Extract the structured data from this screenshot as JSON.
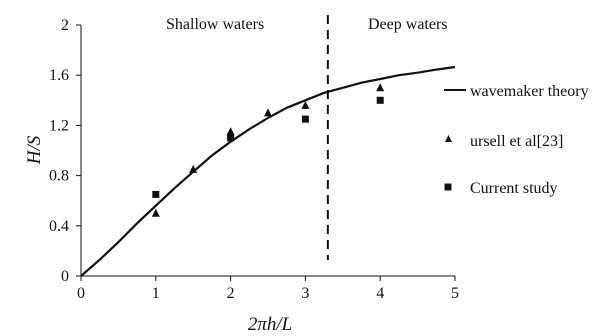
{
  "chart_data": {
    "type": "line",
    "xlabel": "2πh/L",
    "ylabel": "H/S",
    "xlim": [
      0,
      5
    ],
    "ylim": [
      0,
      2
    ],
    "x_ticks": [
      "0",
      "1",
      "2",
      "3",
      "4",
      "5"
    ],
    "y_ticks": [
      "0",
      "0.4",
      "0.8",
      "1.2",
      "1.6",
      "2"
    ],
    "grid": false,
    "legend_position": "right",
    "annotations": {
      "left_region": "Shallow waters",
      "right_region": "Deep waters"
    },
    "divider_x": 3.3,
    "series": [
      {
        "name": "wavemaker theory",
        "style": "line",
        "x": [
          0,
          0.25,
          0.5,
          0.75,
          1.0,
          1.25,
          1.5,
          1.75,
          2.0,
          2.25,
          2.5,
          2.75,
          3.0,
          3.25,
          3.5,
          3.75,
          4.0,
          4.25,
          4.5,
          4.75,
          5.0
        ],
        "y": [
          0,
          0.13,
          0.27,
          0.42,
          0.56,
          0.7,
          0.83,
          0.96,
          1.07,
          1.17,
          1.26,
          1.34,
          1.4,
          1.46,
          1.5,
          1.54,
          1.57,
          1.6,
          1.62,
          1.645,
          1.665
        ]
      },
      {
        "name": "ursell et al[23]",
        "style": "triangle",
        "x": [
          1.0,
          1.5,
          2.0,
          2.0,
          2.5,
          3.0,
          4.0
        ],
        "y": [
          0.5,
          0.85,
          1.15,
          1.12,
          1.3,
          1.36,
          1.5
        ]
      },
      {
        "name": "Current study",
        "style": "square",
        "x": [
          1.0,
          2.0,
          3.0,
          4.0
        ],
        "y": [
          0.65,
          1.1,
          1.25,
          1.4
        ]
      }
    ],
    "colors": {
      "ink": "#111111"
    }
  }
}
